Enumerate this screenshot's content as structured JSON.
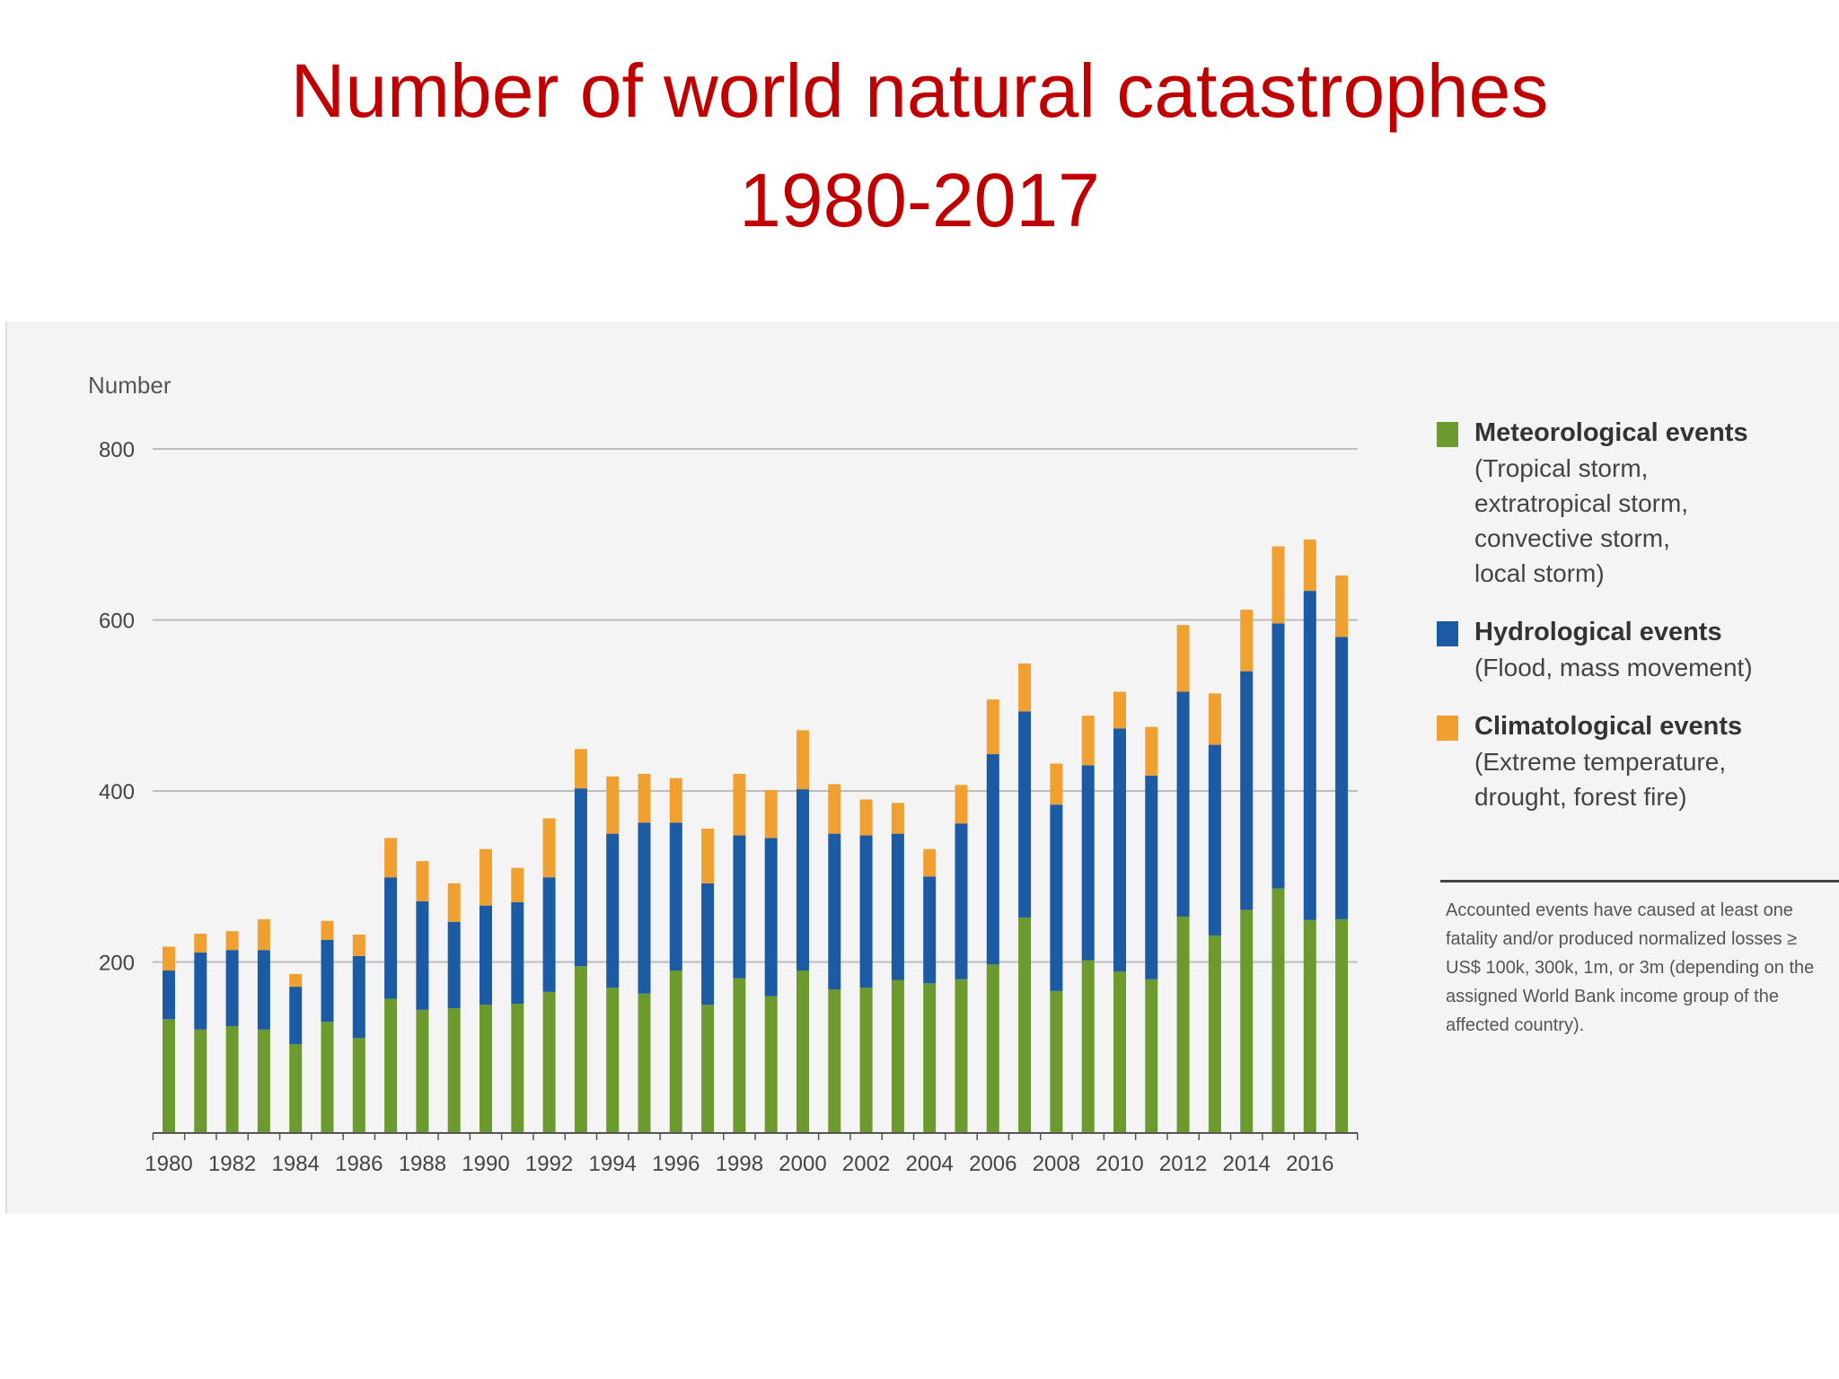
{
  "title": {
    "line1": "Number of world natural catastrophes",
    "line2": "1980-2017"
  },
  "chart_data": {
    "type": "bar",
    "stacked": true,
    "ylabel": "Number",
    "xlabel": "",
    "ylim": [
      0,
      800
    ],
    "yticks": [
      200,
      400,
      600,
      800
    ],
    "grid": true,
    "legend_position": "right",
    "categories": [
      "1980",
      "1981",
      "1982",
      "1983",
      "1984",
      "1985",
      "1986",
      "1987",
      "1988",
      "1989",
      "1990",
      "1991",
      "1992",
      "1993",
      "1994",
      "1995",
      "1996",
      "1997",
      "1998",
      "1999",
      "2000",
      "2001",
      "2002",
      "2003",
      "2004",
      "2005",
      "2006",
      "2007",
      "2008",
      "2009",
      "2010",
      "2011",
      "2012",
      "2013",
      "2014",
      "2015",
      "2016",
      "2017"
    ],
    "tick_labels": [
      "1980",
      "1982",
      "1984",
      "1986",
      "1988",
      "1990",
      "1992",
      "1994",
      "1996",
      "1998",
      "2000",
      "2002",
      "2004",
      "2006",
      "2008",
      "2010",
      "2012",
      "2014",
      "2016"
    ],
    "series": [
      {
        "name": "Meteorological events",
        "color": "#6d9a2e",
        "values": [
          133,
          121,
          125,
          121,
          104,
          130,
          111,
          157,
          144,
          146,
          150,
          151,
          165,
          195,
          170,
          163,
          190,
          150,
          181,
          160,
          190,
          168,
          170,
          179,
          175,
          180,
          197,
          252,
          166,
          202,
          189,
          180,
          253,
          231,
          261,
          286,
          249,
          250
        ]
      },
      {
        "name": "Hydrological events",
        "color": "#1c5aa3",
        "values": [
          57,
          90,
          89,
          93,
          67,
          96,
          96,
          142,
          127,
          101,
          116,
          119,
          134,
          208,
          180,
          200,
          173,
          142,
          167,
          185,
          212,
          182,
          178,
          171,
          125,
          182,
          246,
          241,
          218,
          228,
          284,
          238,
          263,
          223,
          279,
          310,
          385,
          330
        ]
      },
      {
        "name": "Climatological events",
        "color": "#f0a030",
        "values": [
          28,
          22,
          22,
          36,
          15,
          22,
          25,
          46,
          47,
          45,
          66,
          40,
          69,
          46,
          67,
          57,
          52,
          64,
          72,
          56,
          69,
          58,
          42,
          36,
          32,
          45,
          64,
          56,
          48,
          58,
          43,
          57,
          78,
          60,
          72,
          90,
          60,
          72
        ]
      }
    ]
  },
  "legend": [
    {
      "name": "Meteorological events",
      "color": "#6d9a2e",
      "desc": [
        "(Tropical storm,",
        "extratropical storm,",
        "convective storm,",
        "local storm)"
      ]
    },
    {
      "name": "Hydrological events",
      "color": "#1c5aa3",
      "desc": [
        "(Flood, mass movement)"
      ]
    },
    {
      "name": "Climatological events",
      "color": "#f0a030",
      "desc": [
        "(Extreme temperature,",
        "drought, forest fire)"
      ]
    }
  ],
  "note": "Accounted events have caused at least one fatality and/or produced normalized losses ≥ US$ 100k, 300k, 1m, or 3m (depending on the assigned World Bank income group of the affected country)."
}
